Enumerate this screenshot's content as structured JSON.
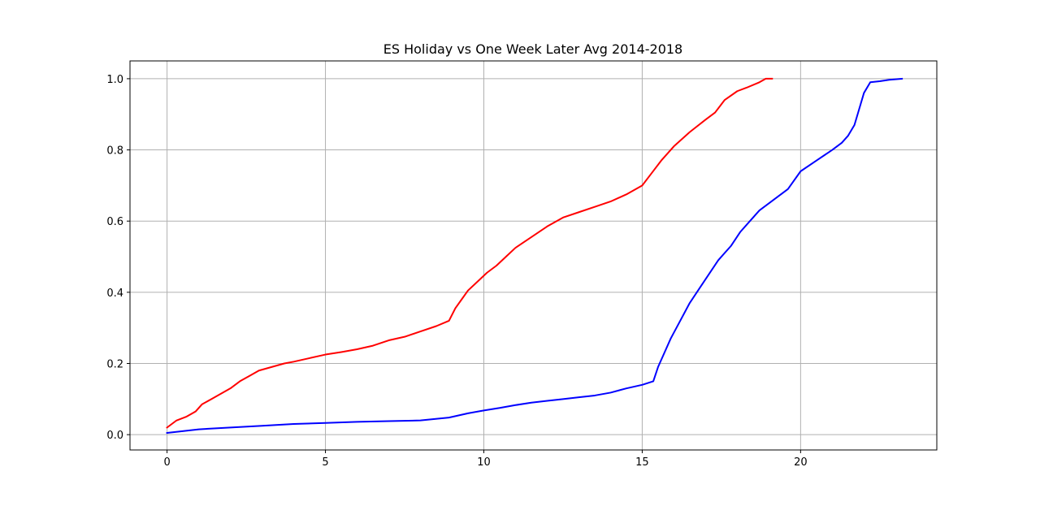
{
  "chart_data": {
    "type": "line",
    "title": "ES Holiday vs One Week Later Avg 2014-2018",
    "xlabel": "",
    "ylabel": "",
    "xlim": [
      -1.17,
      24.3
    ],
    "ylim": [
      -0.043,
      1.05
    ],
    "xticks": [
      0,
      5,
      10,
      15,
      20
    ],
    "xtick_labels": [
      "0",
      "5",
      "10",
      "15",
      "20"
    ],
    "yticks": [
      0.0,
      0.2,
      0.4,
      0.6,
      0.8,
      1.0
    ],
    "ytick_labels": [
      "0.0",
      "0.2",
      "0.4",
      "0.6",
      "0.8",
      "1.0"
    ],
    "grid": true,
    "legend": "none",
    "series": [
      {
        "color": "#ff0000",
        "x": [
          0.0,
          0.3,
          0.6,
          0.9,
          1.1,
          1.4,
          1.7,
          2.0,
          2.3,
          2.6,
          2.9,
          3.3,
          3.7,
          4.0,
          4.5,
          5.0,
          5.5,
          6.0,
          6.5,
          7.0,
          7.5,
          8.0,
          8.5,
          8.9,
          9.1,
          9.3,
          9.5,
          9.8,
          10.1,
          10.4,
          10.7,
          11.0,
          11.5,
          12.0,
          12.5,
          13.0,
          13.5,
          14.0,
          14.5,
          15.0,
          15.3,
          15.6,
          16.0,
          16.5,
          17.0,
          17.3,
          17.6,
          18.0,
          18.3,
          18.7,
          18.9,
          19.1
        ],
        "y": [
          0.02,
          0.04,
          0.05,
          0.065,
          0.085,
          0.1,
          0.115,
          0.13,
          0.15,
          0.165,
          0.18,
          0.19,
          0.2,
          0.205,
          0.215,
          0.225,
          0.232,
          0.24,
          0.25,
          0.265,
          0.275,
          0.29,
          0.305,
          0.32,
          0.355,
          0.38,
          0.405,
          0.43,
          0.455,
          0.475,
          0.5,
          0.525,
          0.555,
          0.585,
          0.61,
          0.625,
          0.64,
          0.655,
          0.675,
          0.7,
          0.735,
          0.77,
          0.81,
          0.85,
          0.885,
          0.905,
          0.94,
          0.965,
          0.975,
          0.99,
          1.0,
          1.0
        ]
      },
      {
        "color": "#0000ff",
        "x": [
          0.0,
          1.0,
          2.0,
          3.0,
          4.0,
          5.0,
          6.0,
          7.0,
          8.0,
          8.9,
          9.5,
          10.0,
          10.5,
          11.0,
          11.5,
          12.0,
          12.5,
          13.0,
          13.5,
          14.0,
          14.5,
          15.0,
          15.35,
          15.5,
          15.7,
          15.9,
          16.2,
          16.5,
          16.8,
          17.1,
          17.4,
          17.8,
          18.1,
          18.4,
          18.7,
          19.0,
          19.3,
          19.6,
          20.0,
          20.5,
          21.0,
          21.3,
          21.5,
          21.7,
          21.8,
          22.0,
          22.2,
          22.5,
          22.8,
          23.2
        ],
        "y": [
          0.005,
          0.015,
          0.02,
          0.025,
          0.03,
          0.033,
          0.036,
          0.038,
          0.04,
          0.048,
          0.06,
          0.068,
          0.075,
          0.083,
          0.09,
          0.095,
          0.1,
          0.105,
          0.11,
          0.118,
          0.13,
          0.14,
          0.15,
          0.19,
          0.23,
          0.27,
          0.32,
          0.37,
          0.41,
          0.45,
          0.49,
          0.53,
          0.57,
          0.6,
          0.63,
          0.65,
          0.67,
          0.69,
          0.74,
          0.77,
          0.8,
          0.82,
          0.84,
          0.87,
          0.9,
          0.96,
          0.99,
          0.993,
          0.997,
          1.0
        ]
      }
    ]
  }
}
